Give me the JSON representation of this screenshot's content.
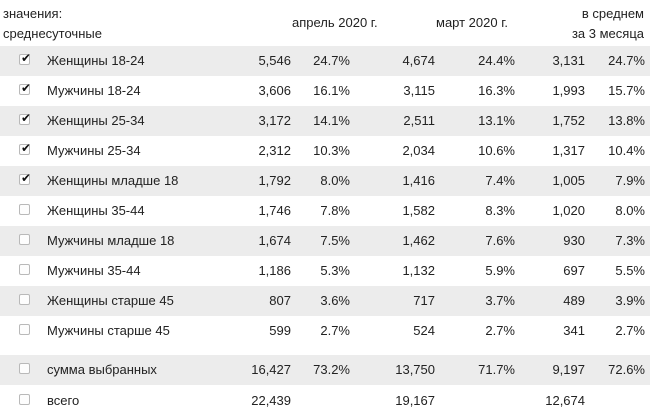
{
  "header": {
    "values_line1": "значения:",
    "values_line2": "среднесуточные",
    "april": "апрель 2020 г.",
    "march": "март 2020 г.",
    "avg_line1": "в среднем",
    "avg_line2": "за 3 месяца"
  },
  "rows": [
    {
      "label": "Женщины 18-24",
      "checked": true,
      "apr": "5,546",
      "apr_pct": "24.7%",
      "mar": "4,674",
      "mar_pct": "24.4%",
      "avg": "3,131",
      "avg_pct": "24.7%"
    },
    {
      "label": "Мужчины 18-24",
      "checked": true,
      "apr": "3,606",
      "apr_pct": "16.1%",
      "mar": "3,115",
      "mar_pct": "16.3%",
      "avg": "1,993",
      "avg_pct": "15.7%"
    },
    {
      "label": "Женщины 25-34",
      "checked": true,
      "apr": "3,172",
      "apr_pct": "14.1%",
      "mar": "2,511",
      "mar_pct": "13.1%",
      "avg": "1,752",
      "avg_pct": "13.8%"
    },
    {
      "label": "Мужчины 25-34",
      "checked": true,
      "apr": "2,312",
      "apr_pct": "10.3%",
      "mar": "2,034",
      "mar_pct": "10.6%",
      "avg": "1,317",
      "avg_pct": "10.4%"
    },
    {
      "label": "Женщины младше 18",
      "checked": true,
      "apr": "1,792",
      "apr_pct": "8.0%",
      "mar": "1,416",
      "mar_pct": "7.4%",
      "avg": "1,005",
      "avg_pct": "7.9%"
    },
    {
      "label": "Женщины 35-44",
      "checked": false,
      "apr": "1,746",
      "apr_pct": "7.8%",
      "mar": "1,582",
      "mar_pct": "8.3%",
      "avg": "1,020",
      "avg_pct": "8.0%"
    },
    {
      "label": "Мужчины младше 18",
      "checked": false,
      "apr": "1,674",
      "apr_pct": "7.5%",
      "mar": "1,462",
      "mar_pct": "7.6%",
      "avg": "930",
      "avg_pct": "7.3%"
    },
    {
      "label": "Мужчины 35-44",
      "checked": false,
      "apr": "1,186",
      "apr_pct": "5.3%",
      "mar": "1,132",
      "mar_pct": "5.9%",
      "avg": "697",
      "avg_pct": "5.5%"
    },
    {
      "label": "Женщины старше 45",
      "checked": false,
      "apr": "807",
      "apr_pct": "3.6%",
      "mar": "717",
      "mar_pct": "3.7%",
      "avg": "489",
      "avg_pct": "3.9%"
    },
    {
      "label": "Мужчины старше 45",
      "checked": false,
      "apr": "599",
      "apr_pct": "2.7%",
      "mar": "524",
      "mar_pct": "2.7%",
      "avg": "341",
      "avg_pct": "2.7%"
    }
  ],
  "summary": {
    "label": "сумма выбранных",
    "checked": false,
    "apr": "16,427",
    "apr_pct": "73.2%",
    "mar": "13,750",
    "mar_pct": "71.7%",
    "avg": "9,197",
    "avg_pct": "72.6%"
  },
  "total": {
    "label": "всего",
    "checked": false,
    "apr": "22,439",
    "apr_pct": "",
    "mar": "19,167",
    "mar_pct": "",
    "avg": "12,674",
    "avg_pct": ""
  }
}
